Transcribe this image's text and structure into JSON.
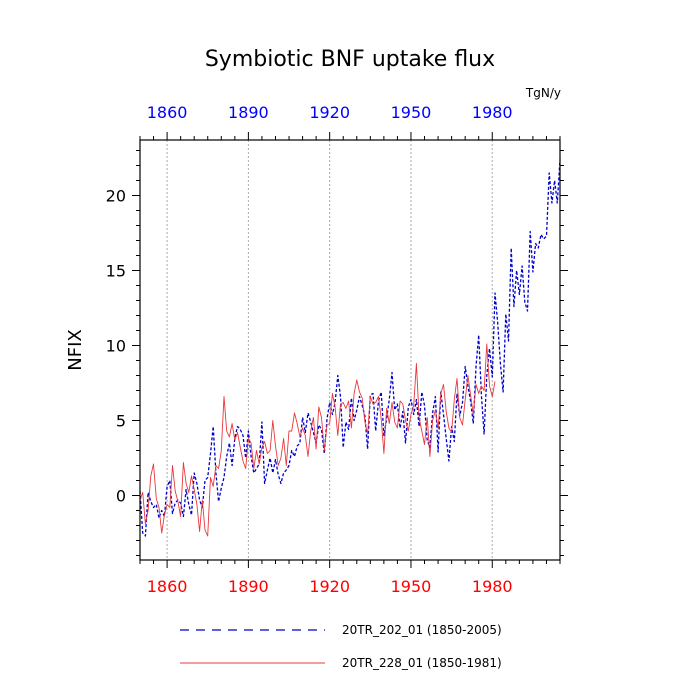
{
  "chart_data": {
    "type": "line",
    "title": "Symbiotic BNF uptake flux",
    "units": "TgN/y",
    "ylabel": "NFIX",
    "xlim": [
      1850,
      2005
    ],
    "ylim": [
      -4.3,
      23.7
    ],
    "yticks": [
      0,
      5,
      10,
      15,
      20
    ],
    "xticks": [
      1860,
      1890,
      1920,
      1950,
      1980
    ],
    "grid_x": [
      1860,
      1890,
      1920,
      1950,
      1980
    ],
    "colors": {
      "bottom_axis": "#ff0000",
      "top_axis": "#0000ff"
    },
    "series": [
      {
        "name": "20TR_202_01 (1850-2005)",
        "color": "#0000cc",
        "style": "dashed",
        "x": [
          1850,
          1851,
          1852,
          1853,
          1854,
          1855,
          1856,
          1857,
          1858,
          1859,
          1860,
          1861,
          1862,
          1863,
          1864,
          1865,
          1866,
          1867,
          1868,
          1869,
          1870,
          1871,
          1872,
          1873,
          1874,
          1875,
          1876,
          1877,
          1878,
          1879,
          1880,
          1881,
          1882,
          1883,
          1884,
          1885,
          1886,
          1887,
          1888,
          1889,
          1890,
          1891,
          1892,
          1893,
          1894,
          1895,
          1896,
          1897,
          1898,
          1899,
          1900,
          1901,
          1902,
          1903,
          1904,
          1905,
          1906,
          1907,
          1908,
          1909,
          1910,
          1911,
          1912,
          1913,
          1914,
          1915,
          1916,
          1917,
          1918,
          1919,
          1920,
          1921,
          1922,
          1923,
          1924,
          1925,
          1926,
          1927,
          1928,
          1929,
          1930,
          1931,
          1932,
          1933,
          1934,
          1935,
          1936,
          1937,
          1938,
          1939,
          1940,
          1941,
          1942,
          1943,
          1944,
          1945,
          1946,
          1947,
          1948,
          1949,
          1950,
          1951,
          1952,
          1953,
          1954,
          1955,
          1956,
          1957,
          1958,
          1959,
          1960,
          1961,
          1962,
          1963,
          1964,
          1965,
          1966,
          1967,
          1968,
          1969,
          1970,
          1971,
          1972,
          1973,
          1974,
          1975,
          1976,
          1977,
          1978,
          1979,
          1980,
          1981,
          1982,
          1983,
          1984,
          1985,
          1986,
          1987,
          1988,
          1989,
          1990,
          1991,
          1992,
          1993,
          1994,
          1995,
          1996,
          1997,
          1998,
          1999,
          2000,
          2001,
          2002,
          2003,
          2004,
          2005
        ],
        "y": [
          0.3,
          -2.5,
          -2.7,
          0.2,
          -0.4,
          -0.8,
          -0.6,
          -1.5,
          -1.0,
          -1.4,
          0.6,
          1.0,
          -1.2,
          -0.5,
          -0.3,
          -0.5,
          -1.4,
          0.4,
          -0.6,
          -1.3,
          1.5,
          0.8,
          -0.3,
          -0.8,
          1.0,
          1.2,
          2.8,
          4.6,
          1.5,
          -0.4,
          0.5,
          1.2,
          2.6,
          3.5,
          2.0,
          3.8,
          4.6,
          4.4,
          4.0,
          2.5,
          4.3,
          2.6,
          1.5,
          1.8,
          2.1,
          4.9,
          0.8,
          1.7,
          2.5,
          1.5,
          2.4,
          1.4,
          0.8,
          1.5,
          1.7,
          2.0,
          3.0,
          2.6,
          3.3,
          3.5,
          5.2,
          4.2,
          5.5,
          4.9,
          4.2,
          3.5,
          4.7,
          4.4,
          2.8,
          5.1,
          6.2,
          5.4,
          6.2,
          8.0,
          6.6,
          3.2,
          4.9,
          4.4,
          6.5,
          5.0,
          5.7,
          6.6,
          6.0,
          5.3,
          3.1,
          6.7,
          6.8,
          4.3,
          6.3,
          6.9,
          4.0,
          5.1,
          6.4,
          8.2,
          5.7,
          6.1,
          4.5,
          5.6,
          3.5,
          5.9,
          6.4,
          5.4,
          6.4,
          4.6,
          6.9,
          6.0,
          3.7,
          3.2,
          5.5,
          6.6,
          2.9,
          6.9,
          5.4,
          3.8,
          2.3,
          4.6,
          3.6,
          6.8,
          5.3,
          6.2,
          8.6,
          7.3,
          6.3,
          4.8,
          8.6,
          10.7,
          6.7,
          4.1,
          8.0,
          9.8,
          7.9,
          13.5,
          11.5,
          8.8,
          6.9,
          12.1,
          10.3,
          16.5,
          12.6,
          15.0,
          13.4,
          15.3,
          12.9,
          12.3,
          17.6,
          14.9,
          16.8,
          16.5,
          17.4,
          17.1,
          17.3,
          21.5,
          19.5,
          21.0,
          19.5,
          22.4
        ]
      },
      {
        "name": "20TR_228_01 (1850-1981)",
        "color": "#e8383d",
        "style": "solid",
        "x": [
          1850,
          1851,
          1852,
          1853,
          1854,
          1855,
          1856,
          1857,
          1858,
          1859,
          1860,
          1861,
          1862,
          1863,
          1864,
          1865,
          1866,
          1867,
          1868,
          1869,
          1870,
          1871,
          1872,
          1873,
          1874,
          1875,
          1876,
          1877,
          1878,
          1879,
          1880,
          1881,
          1882,
          1883,
          1884,
          1885,
          1886,
          1887,
          1888,
          1889,
          1890,
          1891,
          1892,
          1893,
          1894,
          1895,
          1896,
          1897,
          1898,
          1899,
          1900,
          1901,
          1902,
          1903,
          1904,
          1905,
          1906,
          1907,
          1908,
          1909,
          1910,
          1911,
          1912,
          1913,
          1914,
          1915,
          1916,
          1917,
          1918,
          1919,
          1920,
          1921,
          1922,
          1923,
          1924,
          1925,
          1926,
          1927,
          1928,
          1929,
          1930,
          1931,
          1932,
          1933,
          1934,
          1935,
          1936,
          1937,
          1938,
          1939,
          1940,
          1941,
          1942,
          1943,
          1944,
          1945,
          1946,
          1947,
          1948,
          1949,
          1950,
          1951,
          1952,
          1953,
          1954,
          1955,
          1956,
          1957,
          1958,
          1959,
          1960,
          1961,
          1962,
          1963,
          1964,
          1965,
          1966,
          1967,
          1968,
          1969,
          1970,
          1971,
          1972,
          1973,
          1974,
          1975,
          1976,
          1977,
          1978,
          1979,
          1980,
          1981
        ],
        "y": [
          -0.3,
          0.2,
          -1.9,
          -1.0,
          1.3,
          2.1,
          -0.2,
          -0.8,
          -2.5,
          -1.3,
          -0.6,
          -0.8,
          2.0,
          0.3,
          -0.4,
          -1.4,
          2.2,
          0.8,
          0.2,
          1.3,
          0.4,
          -0.6,
          -2.4,
          -0.3,
          -2.3,
          -2.7,
          1.2,
          0.6,
          2.0,
          1.8,
          3.0,
          6.6,
          4.3,
          3.9,
          4.8,
          3.7,
          4.2,
          3.2,
          2.3,
          1.8,
          3.8,
          3.5,
          1.8,
          3.0,
          2.1,
          3.2,
          3.6,
          2.8,
          3.0,
          5.0,
          3.3,
          2.0,
          2.5,
          3.8,
          2.0,
          4.3,
          4.3,
          5.5,
          4.8,
          3.9,
          4.5,
          4.0,
          2.6,
          4.3,
          5.2,
          3.1,
          5.9,
          5.2,
          3.0,
          4.7,
          4.8,
          6.8,
          5.9,
          4.0,
          6.1,
          6.2,
          5.8,
          6.3,
          4.5,
          6.8,
          7.7,
          6.9,
          6.5,
          4.9,
          4.1,
          6.6,
          6.1,
          6.2,
          6.6,
          5.1,
          2.8,
          5.8,
          4.8,
          6.2,
          4.9,
          4.5,
          6.3,
          6.1,
          5.0,
          4.3,
          5.4,
          6.0,
          8.8,
          5.2,
          4.3,
          3.4,
          5.2,
          2.6,
          5.0,
          5.7,
          4.5,
          6.8,
          7.4,
          5.6,
          4.5,
          4.2,
          6.4,
          7.8,
          5.2,
          4.7,
          6.4,
          8.0,
          6.7,
          5.4,
          7.4,
          6.8,
          7.3,
          7.0,
          10.1,
          7.3,
          6.6,
          7.6
        ]
      }
    ]
  }
}
